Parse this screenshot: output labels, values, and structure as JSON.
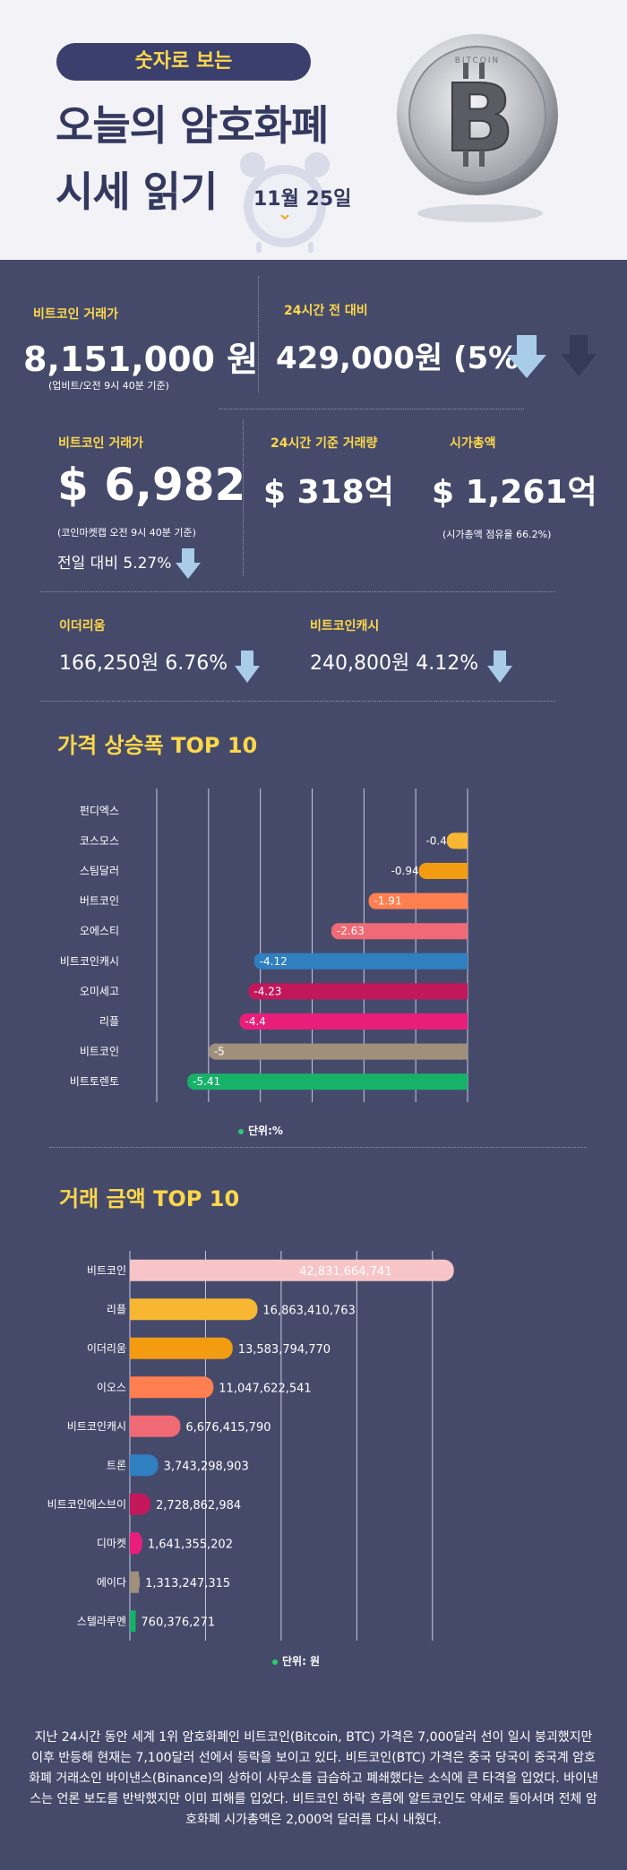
{
  "header": {
    "pill": "숫자로 보는",
    "title_line1": "오늘의 암호화폐",
    "title_line2": "시세 읽기",
    "date": "11월 25일",
    "coin_logo_text": "BITCOIN"
  },
  "stats": {
    "btc_krw": {
      "label": "비트코인 거래가",
      "value": "8,151,000 원",
      "note": "(업비트/오전 9시 40분 기준)"
    },
    "change_24h": {
      "label": "24시간 전 대비",
      "value": "429,000원 (5%)"
    },
    "btc_usd": {
      "label": "비트코인 거래가",
      "value": "$ 6,982",
      "note": "(코인마켓캡 오전 9시 40분 기준)",
      "change": "전일 대비 5.27%"
    },
    "volume": {
      "label": "24시간 기준 거래량",
      "value": "$ 318억"
    },
    "market_cap": {
      "label": "시가총액",
      "value": "$ 1,261억",
      "note": "(시가총액 점유율 66.2%)"
    },
    "eth": {
      "label": "이더리움",
      "value": "166,250원  6.76%"
    },
    "bch": {
      "label": "비트코인캐시",
      "value": "240,800원  4.12%"
    }
  },
  "colors": {
    "background": "#454a6b",
    "accent_yellow": "#ffd84a",
    "down_arrow": "#a9cde8"
  },
  "chart_data": [
    {
      "type": "bar",
      "orientation": "horizontal",
      "title": "가격 상승폭 TOP 10",
      "unit": "단위:%",
      "categories": [
        "펀디엑스",
        "코스모스",
        "스팀달러",
        "버트코인",
        "오에스티",
        "비트코인캐시",
        "오미세고",
        "리플",
        "비트코인",
        "비트토렌토"
      ],
      "values": [
        0,
        -0.4,
        -0.94,
        -1.91,
        -2.63,
        -4.12,
        -4.23,
        -4.4,
        -5,
        -5.41
      ],
      "value_labels": [
        "",
        "-0.4",
        "-0.94",
        "-1.91",
        "-2.63",
        "-4.12",
        "-4.23",
        "-4.4",
        "-5",
        "-5.41"
      ],
      "colors": [
        "#f7b733",
        "#f7b733",
        "#f39c12",
        "#ff7f50",
        "#f06a75",
        "#2f7fc1",
        "#c2185b",
        "#e91e7a",
        "#a0907b",
        "#17b26a"
      ],
      "xlim": [
        -6,
        0
      ]
    },
    {
      "type": "bar",
      "orientation": "horizontal",
      "title": "거래 금액 TOP 10",
      "unit": "단위: 원",
      "categories": [
        "비트코인",
        "리플",
        "이더리움",
        "이오스",
        "비트코인캐시",
        "트론",
        "비트코인에스브이",
        "디마켓",
        "에이다",
        "스텔라루멘"
      ],
      "values": [
        42831664741,
        16863410763,
        13583794770,
        11047622541,
        6676415790,
        3743298903,
        2728862984,
        1641355202,
        1313247315,
        760376271
      ],
      "value_labels": [
        "42,831,664,741",
        "16,863,410,763",
        "13,583,794,770",
        "11,047,622,541",
        "6,676,415,790",
        "3,743,298,903",
        "2,728,862,984",
        "1,641,355,202",
        "1,313,247,315",
        "760,376,271"
      ],
      "colors": [
        "#f7c5c8",
        "#f7b733",
        "#f39c12",
        "#ff7f50",
        "#f06a75",
        "#2f7fc1",
        "#c2185b",
        "#e91e7a",
        "#a0907b",
        "#17b26a"
      ],
      "xlim": [
        0,
        45000000000
      ]
    }
  ],
  "footer": {
    "text": "지난 24시간 동안 세계 1위 암호화폐인 비트코인(Bitcoin, BTC) 가격은 7,000달러 선이 일시 붕괴했지만 이후 반등해 현재는 7,100달러 선에서 등락을 보이고 있다. 비트코인(BTC) 가격은 중국 당국이 중국계 암호화폐 거래소인 바이낸스(Binance)의 상하이 사무소를 급습하고 폐쇄했다는 소식에 큰 타격을 입었다. 바이낸스는 언론 보도를 반박했지만 이미 피해를 입었다. 비트코인 하락 흐름에 알트코인도 약세로 돌아서며 전체 암호화폐 시가총액은 2,000억 달러를 다시 내줬다."
  }
}
